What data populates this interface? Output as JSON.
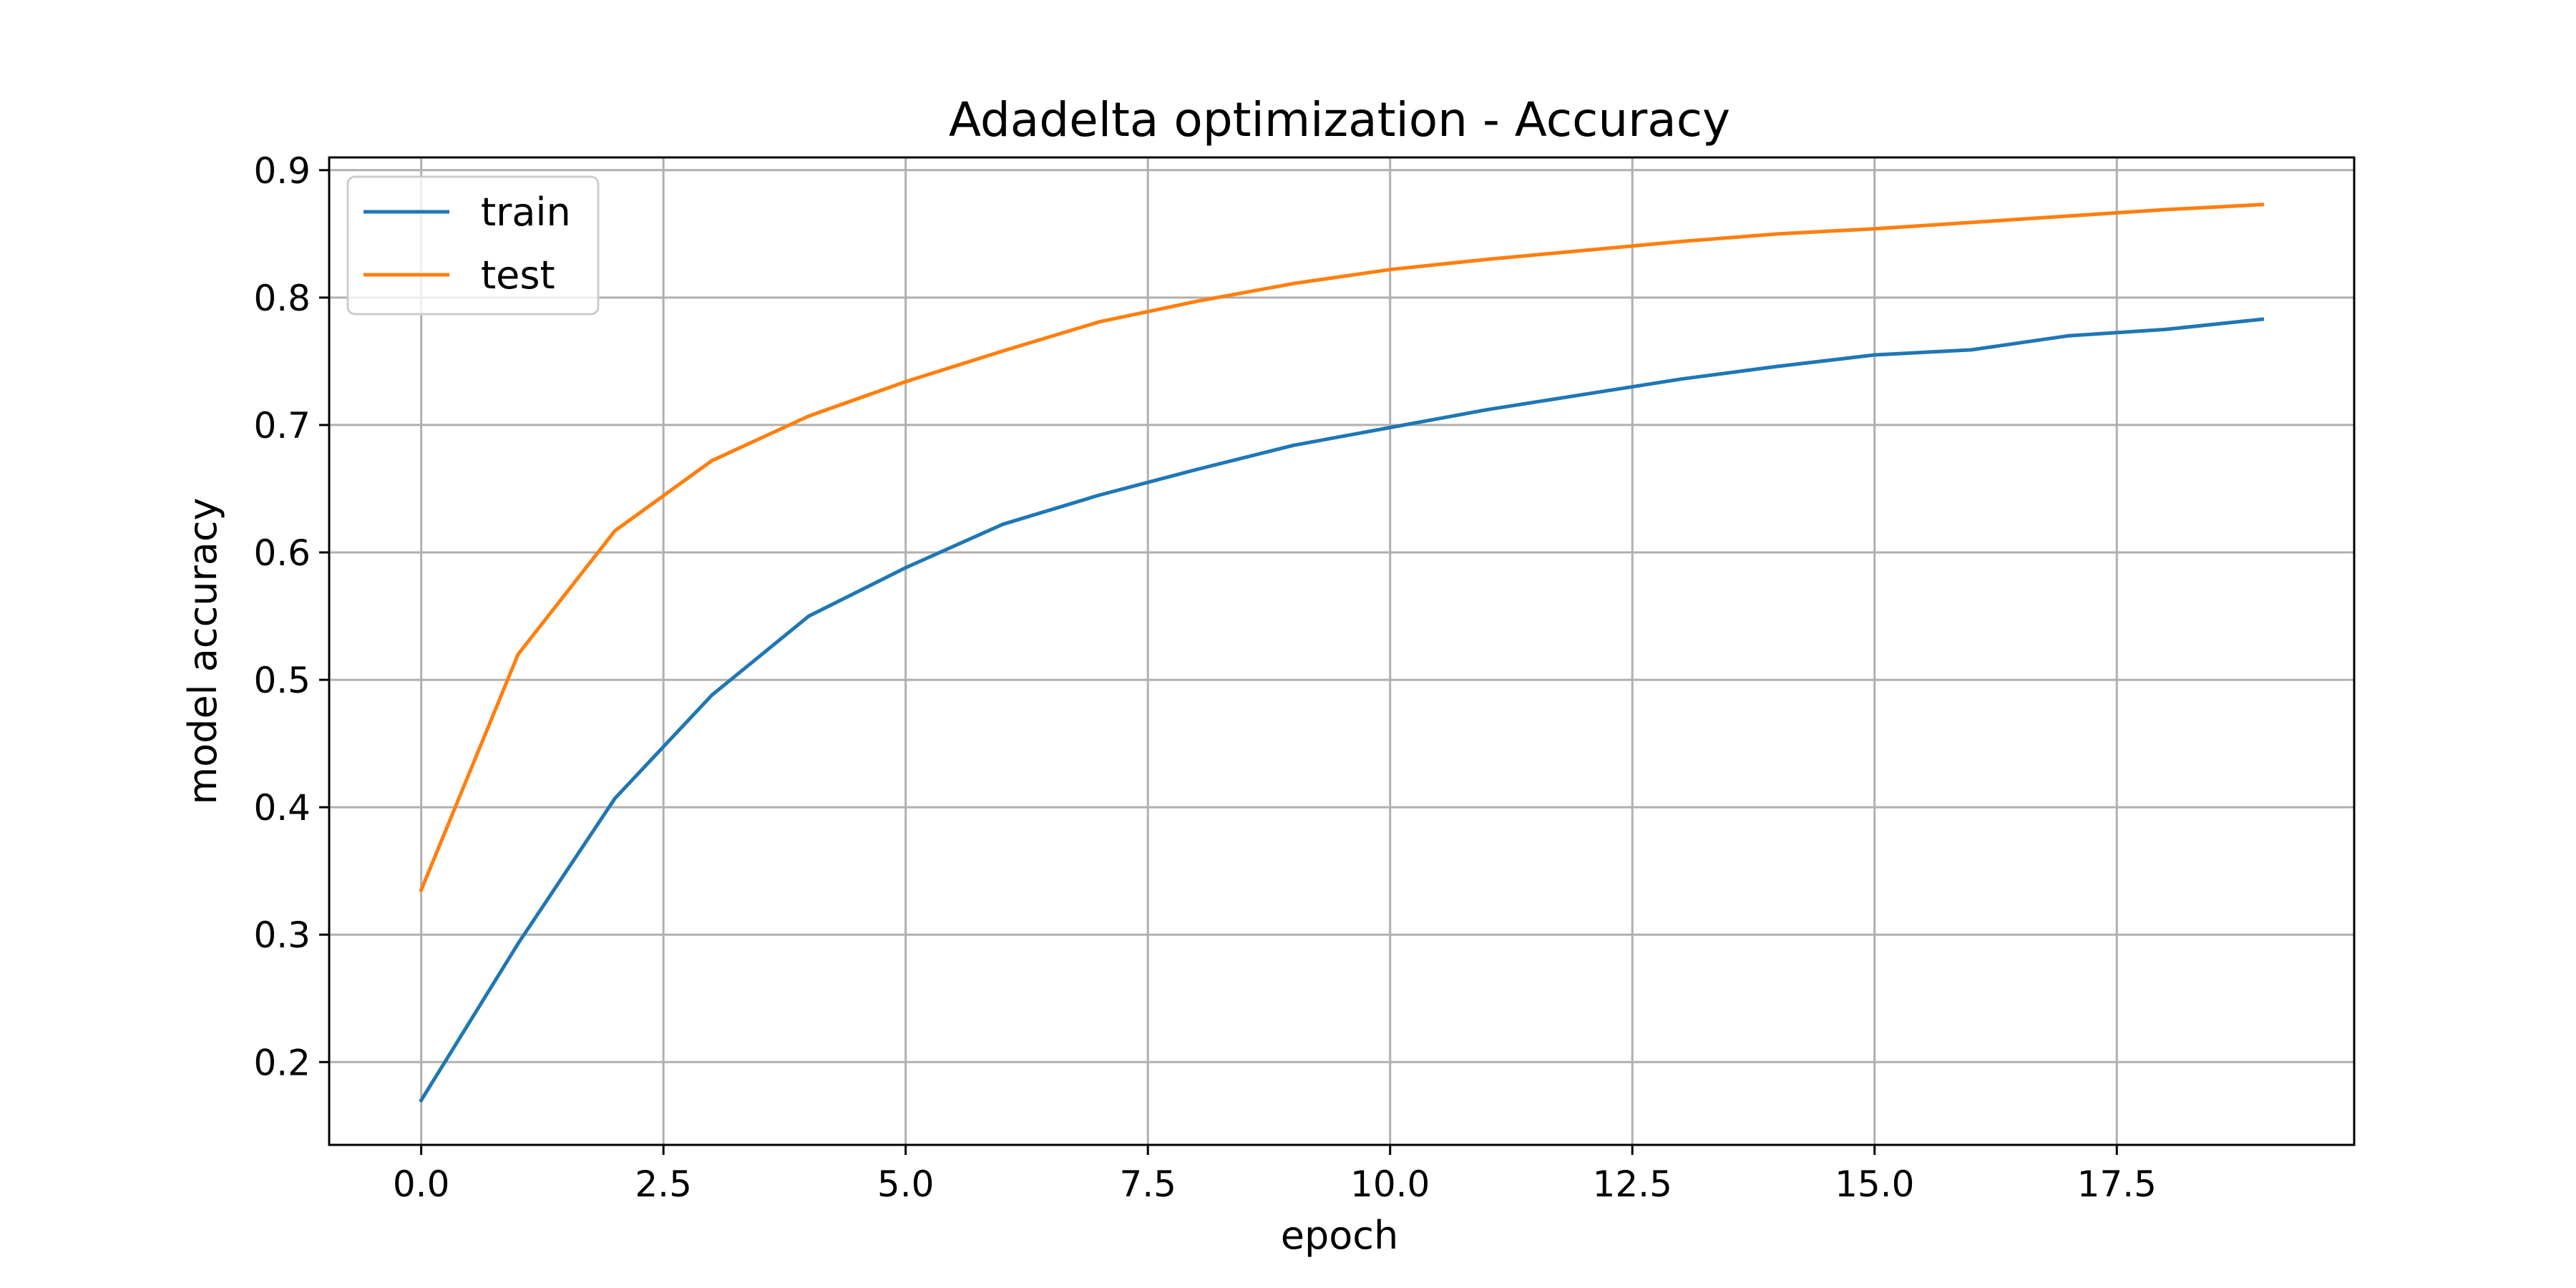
{
  "chart_data": {
    "type": "line",
    "title": "Adadelta optimization - Accuracy",
    "xlabel": "epoch",
    "ylabel": "model accuracy",
    "xlim": [
      -0.95,
      19.95
    ],
    "ylim": [
      0.135,
      0.91
    ],
    "xticks": [
      0.0,
      2.5,
      5.0,
      7.5,
      10.0,
      12.5,
      15.0,
      17.5
    ],
    "xtick_labels": [
      "0.0",
      "2.5",
      "5.0",
      "7.5",
      "10.0",
      "12.5",
      "15.0",
      "17.5"
    ],
    "yticks": [
      0.2,
      0.3,
      0.4,
      0.5,
      0.6,
      0.7,
      0.8,
      0.9
    ],
    "ytick_labels": [
      "0.2",
      "0.3",
      "0.4",
      "0.5",
      "0.6",
      "0.7",
      "0.8",
      "0.9"
    ],
    "grid": true,
    "legend_position": "top-left",
    "x": [
      0,
      1,
      2,
      3,
      4,
      5,
      6,
      7,
      8,
      9,
      10,
      11,
      12,
      13,
      14,
      15,
      16,
      17,
      18,
      19
    ],
    "series": [
      {
        "name": "train",
        "color": "#1f77b4",
        "values": [
          0.17,
          0.293,
          0.407,
          0.488,
          0.55,
          0.588,
          0.622,
          0.645,
          0.665,
          0.684,
          0.698,
          0.712,
          0.724,
          0.736,
          0.746,
          0.755,
          0.759,
          0.77,
          0.775,
          0.783
        ]
      },
      {
        "name": "test",
        "color": "#ff7f0e",
        "values": [
          0.335,
          0.52,
          0.617,
          0.672,
          0.707,
          0.734,
          0.758,
          0.781,
          0.797,
          0.811,
          0.822,
          0.83,
          0.837,
          0.844,
          0.85,
          0.854,
          0.859,
          0.864,
          0.869,
          0.873
        ]
      }
    ]
  }
}
